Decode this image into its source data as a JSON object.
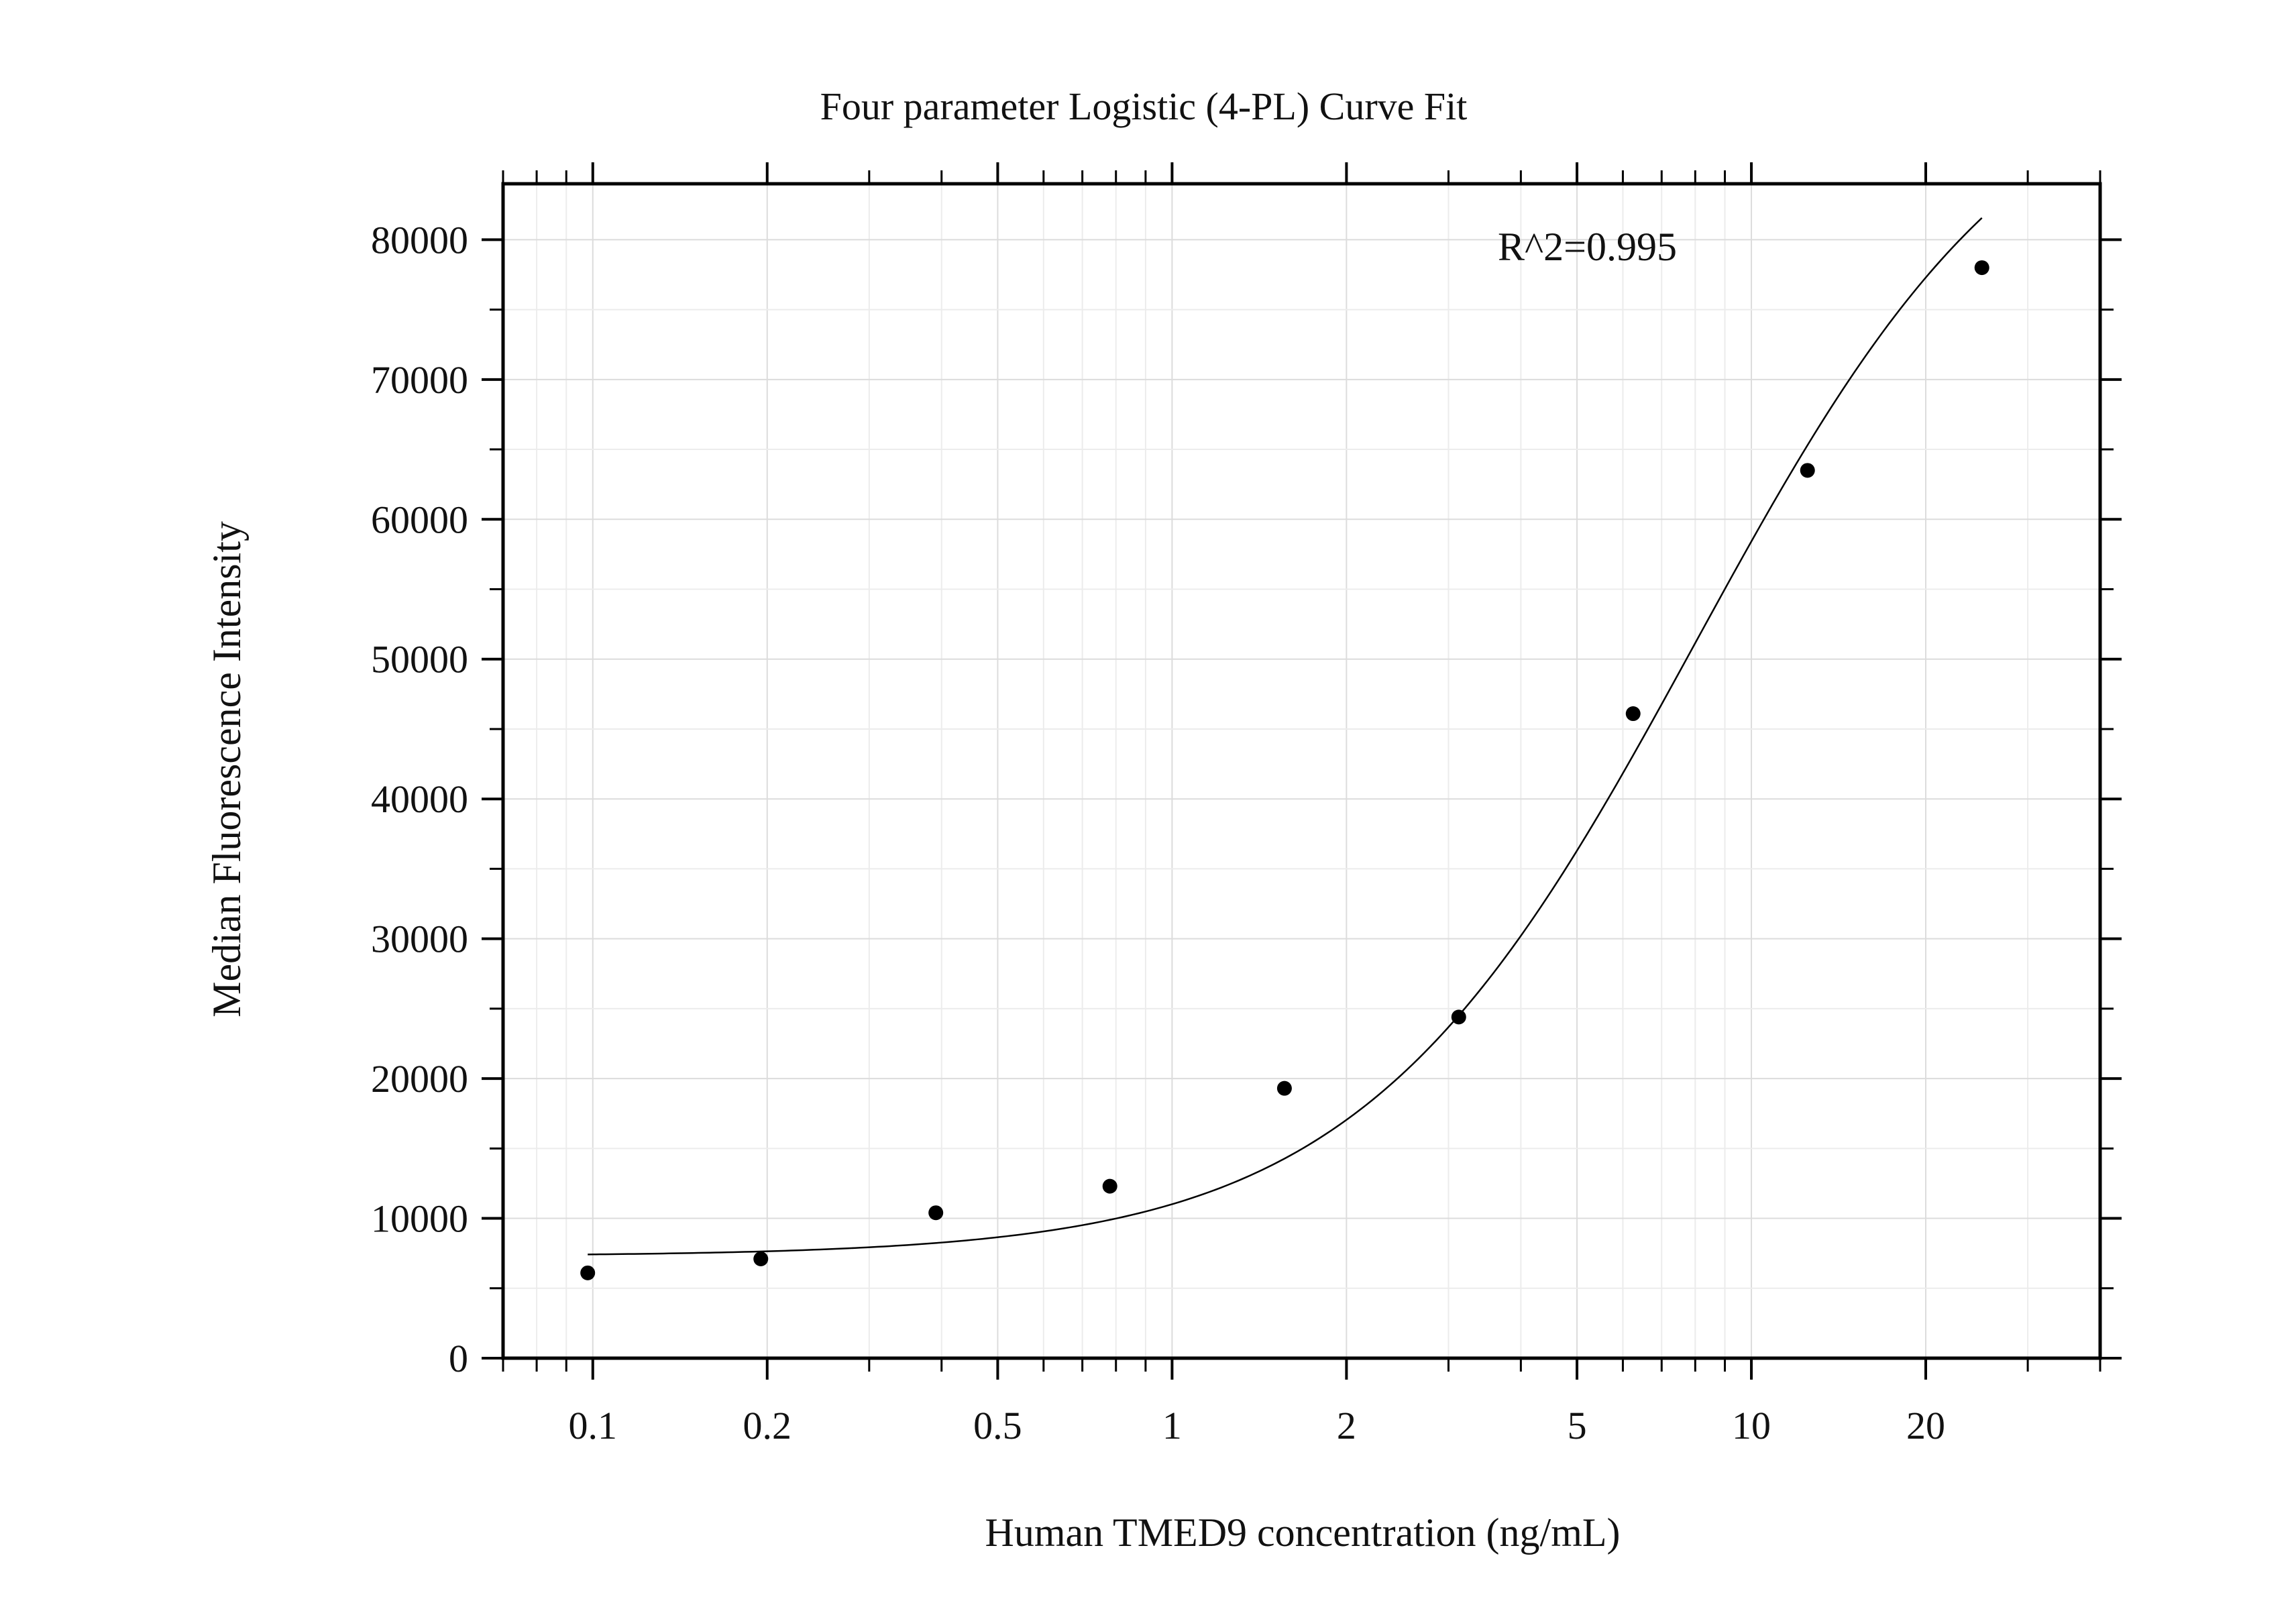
{
  "chart_data": {
    "type": "scatter",
    "title": "Four parameter Logistic (4-PL) Curve Fit",
    "xlabel": "Human TMED9 concentration (ng/mL)",
    "ylabel": "Median Fluorescence Intensity",
    "x_scale": "log",
    "xlim": [
      0.07,
      40
    ],
    "ylim": [
      0,
      84000
    ],
    "x_ticks": [
      {
        "value": 0.1,
        "label": "0.1"
      },
      {
        "value": 0.2,
        "label": "0.2"
      },
      {
        "value": 0.5,
        "label": "0.5"
      },
      {
        "value": 1,
        "label": "1"
      },
      {
        "value": 2,
        "label": "2"
      },
      {
        "value": 5,
        "label": "5"
      },
      {
        "value": 10,
        "label": "10"
      },
      {
        "value": 20,
        "label": "20"
      }
    ],
    "y_ticks": [
      {
        "value": 0,
        "label": "0"
      },
      {
        "value": 10000,
        "label": "10000"
      },
      {
        "value": 20000,
        "label": "20000"
      },
      {
        "value": 30000,
        "label": "30000"
      },
      {
        "value": 40000,
        "label": "40000"
      },
      {
        "value": 50000,
        "label": "50000"
      },
      {
        "value": 60000,
        "label": "60000"
      },
      {
        "value": 70000,
        "label": "70000"
      },
      {
        "value": 80000,
        "label": "80000"
      }
    ],
    "grid": true,
    "annotation": "R^2=0.995",
    "points": [
      {
        "x": 0.098,
        "y": 6100
      },
      {
        "x": 0.195,
        "y": 7100
      },
      {
        "x": 0.391,
        "y": 10400
      },
      {
        "x": 0.781,
        "y": 12300
      },
      {
        "x": 1.563,
        "y": 19300
      },
      {
        "x": 3.125,
        "y": 24400
      },
      {
        "x": 6.25,
        "y": 46100
      },
      {
        "x": 12.5,
        "y": 63500
      },
      {
        "x": 25,
        "y": 78000
      }
    ],
    "fit": {
      "model": "4PL",
      "bottom": 7300,
      "top": 95000,
      "ec50": 8,
      "hill": 1.5,
      "x_range": [
        0.098,
        25
      ]
    }
  }
}
